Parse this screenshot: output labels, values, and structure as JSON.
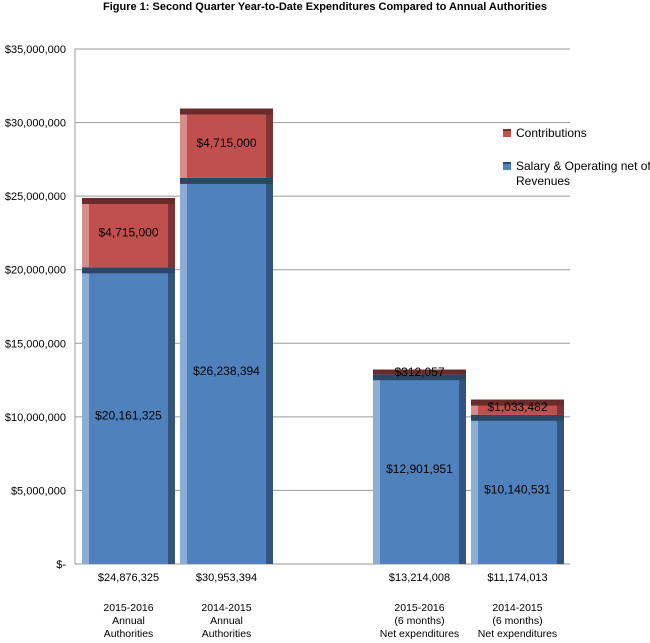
{
  "chart_data": {
    "type": "bar",
    "stacked": true,
    "title": "Figure 1: Second Quarter Year-to-Date Expenditures Compared to Annual Authorities",
    "categories": [
      [
        "2015-2016",
        "Annual",
        "Authorities"
      ],
      [
        "2014-2015",
        "Annual",
        "Authorities"
      ],
      [
        "2015-2016",
        "(6 months)",
        "Net expenditures"
      ],
      [
        "2014-2015",
        "(6 months)",
        "Net expenditures"
      ]
    ],
    "totals": [
      "$24,876,325",
      "$30,953,394",
      "$13,214,008",
      "$11,174,013"
    ],
    "series": [
      {
        "name": "Salary & Operating net of Revenues",
        "color": "#4f81bd",
        "values": [
          20161325,
          26238394,
          12901951,
          10140531
        ],
        "labels": [
          "$20,161,325",
          "$26,238,394",
          "$12,901,951",
          "$10,140,531"
        ]
      },
      {
        "name": "Contributions",
        "color": "#c0504d",
        "values": [
          4715000,
          4715000,
          312057,
          1033482
        ],
        "labels": [
          "$4,715,000",
          "$4,715,000",
          "$312,057",
          "$1,033,482"
        ]
      }
    ],
    "ylim": [
      0,
      35000000
    ],
    "yticks": [
      0,
      5000000,
      10000000,
      15000000,
      20000000,
      25000000,
      30000000,
      35000000
    ],
    "ytick_labels": [
      "$-",
      "$5,000,000",
      "$10,000,000",
      "$15,000,000",
      "$20,000,000",
      "$25,000,000",
      "$30,000,000",
      "$35,000,000"
    ],
    "grid": true,
    "legend_position": "right"
  }
}
